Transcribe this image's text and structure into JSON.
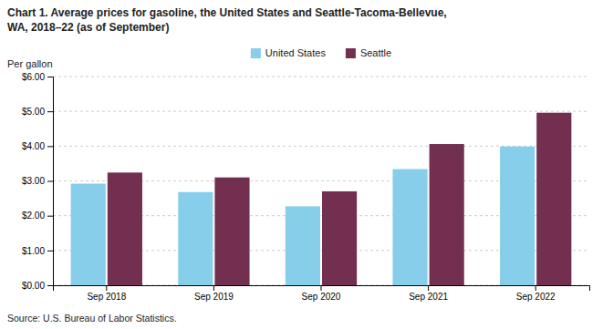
{
  "chart_data": {
    "type": "bar",
    "title": "Chart 1. Average prices for gasoline, the United States and Seattle-Tacoma-Bellevue,\nWA, 2018–22 (as of September)",
    "y_label": "Per gallon",
    "annotations": [
      "Source: U.S. Bureau of Labor Statistics."
    ],
    "categories": [
      "Sep 2018",
      "Sep 2019",
      "Sep 2020",
      "Sep 2021",
      "Sep 2022"
    ],
    "series": [
      {
        "name": "United States",
        "color": "#87CEEB",
        "values": [
          2.92,
          2.68,
          2.27,
          3.34,
          3.99
        ]
      },
      {
        "name": "Seattle",
        "color": "#722F4F",
        "values": [
          3.24,
          3.1,
          2.7,
          4.06,
          4.96
        ]
      }
    ],
    "ylim": [
      0,
      6.0
    ],
    "yticks": [
      {
        "value": 0.0,
        "label": "$0.00"
      },
      {
        "value": 1.0,
        "label": "$1.00"
      },
      {
        "value": 2.0,
        "label": "$2.00"
      },
      {
        "value": 3.0,
        "label": "$3.00"
      },
      {
        "value": 4.0,
        "label": "$4.00"
      },
      {
        "value": 5.0,
        "label": "$5.00"
      },
      {
        "value": 6.0,
        "label": "$6.00"
      }
    ],
    "grid": true,
    "legend": "top"
  }
}
